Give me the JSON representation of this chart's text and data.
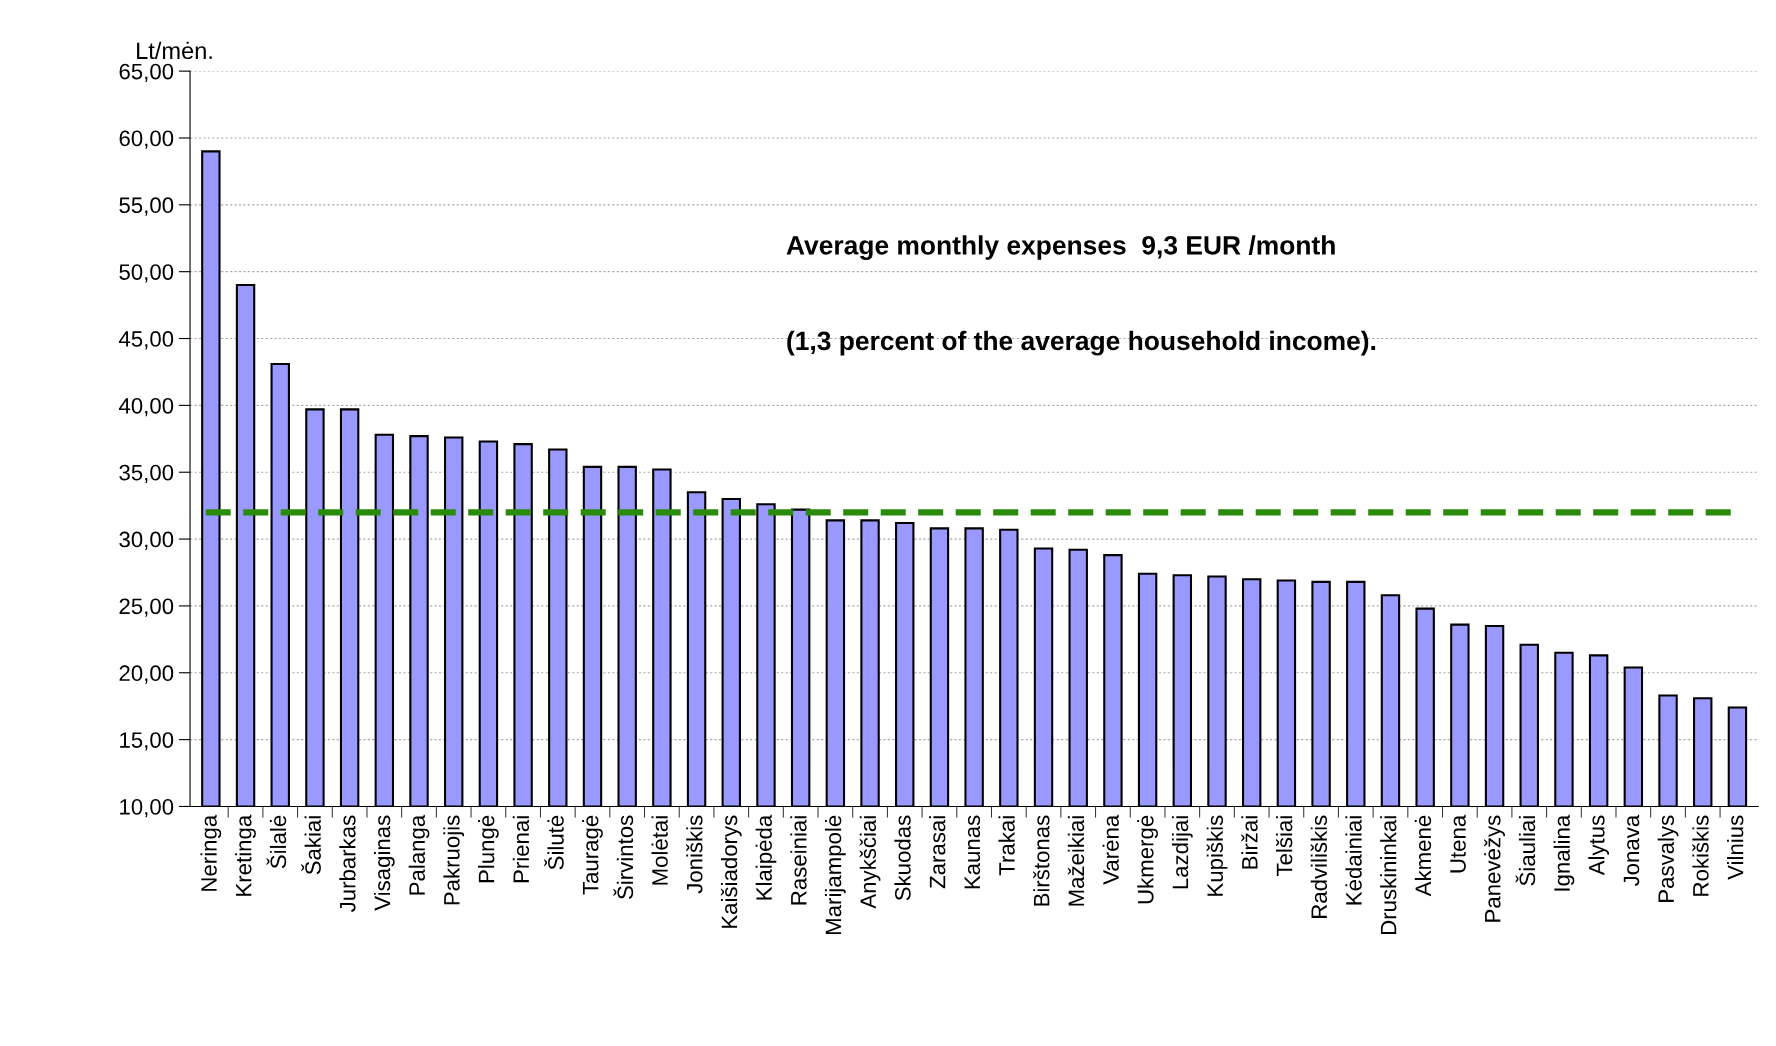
{
  "chart_data": {
    "type": "bar",
    "ylabel": "Lt/mėn.",
    "categories": [
      "Neringa",
      "Kretinga",
      "Šilalė",
      "Šakiai",
      "Jurbarkas",
      "Visaginas",
      "Palanga",
      "Pakruojis",
      "Plungė",
      "Prienai",
      "Šilutė",
      "Tauragė",
      "Širvintos",
      "Molėtai",
      "Joniškis",
      "Kaišiadorys",
      "Klaipėda",
      "Raseiniai",
      "Marijampolė",
      "Anykščiai",
      "Skuodas",
      "Zarasai",
      "Kaunas",
      "Trakai",
      "Birštonas",
      "Mažeikiai",
      "Varėna",
      "Ukmergė",
      "Lazdijai",
      "Kupiškis",
      "Biržai",
      "Telšiai",
      "Radviliškis",
      "Kėdainiai",
      "Druskininkai",
      "Akmenė",
      "Utena",
      "Panevėžys",
      "Šiauliai",
      "Ignalina",
      "Alytus",
      "Jonava",
      "Pasvalys",
      "Rokiškis",
      "Vilnius"
    ],
    "values": [
      59.0,
      49.0,
      43.1,
      39.7,
      39.7,
      37.8,
      37.7,
      37.6,
      37.3,
      37.1,
      36.7,
      35.4,
      35.4,
      35.2,
      33.5,
      33.0,
      32.6,
      32.2,
      31.4,
      31.4,
      31.2,
      30.8,
      30.8,
      30.7,
      29.3,
      29.2,
      28.8,
      27.4,
      27.3,
      27.2,
      27.0,
      26.9,
      26.8,
      26.8,
      25.8,
      24.8,
      23.6,
      23.5,
      22.1,
      21.5,
      21.3,
      20.4,
      18.3,
      18.1,
      17.4
    ],
    "color": "#9999ff",
    "ylim": [
      10,
      65
    ],
    "yticks": [
      {
        "value": 10,
        "label": "10,00"
      },
      {
        "value": 15,
        "label": "15,00"
      },
      {
        "value": 20,
        "label": "20,00"
      },
      {
        "value": 25,
        "label": "25,00"
      },
      {
        "value": 30,
        "label": "30,00"
      },
      {
        "value": 35,
        "label": "35,00"
      },
      {
        "value": 40,
        "label": "40,00"
      },
      {
        "value": 45,
        "label": "45,00"
      },
      {
        "value": 50,
        "label": "50,00"
      },
      {
        "value": 55,
        "label": "55,00"
      },
      {
        "value": 60,
        "label": "60,00"
      },
      {
        "value": 65,
        "label": "65,00"
      }
    ],
    "grid": "y",
    "ref_lines": [
      {
        "axis": "y",
        "value": 32.0,
        "color": "#2a8a0a",
        "line_style": "dashed"
      }
    ],
    "annotations": [
      "Average monthly expenses  9,3 EUR /month",
      "(1,3 percent of the average household income)."
    ]
  }
}
